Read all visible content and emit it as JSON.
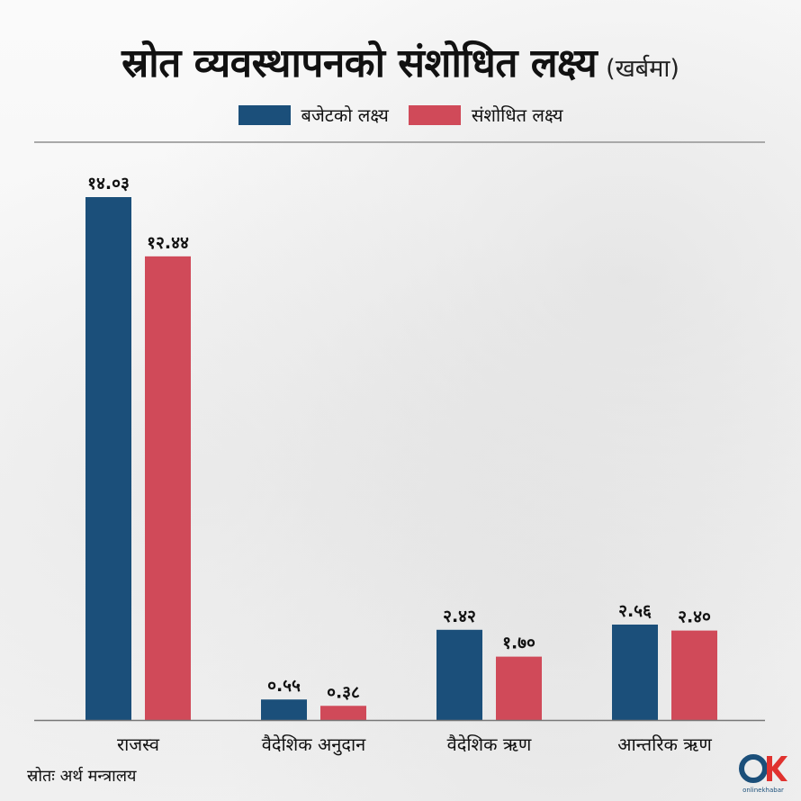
{
  "title": "स्रोत व्यवस्थापनको संशोधित लक्ष्य",
  "title_unit": "(खर्बमा)",
  "source": "स्रोतः अर्थ मन्त्रालय",
  "logo_text": "onlinekhabar",
  "colors": {
    "series1": "#1b4f7a",
    "series2": "#d04a59",
    "axis": "#777777"
  },
  "chart_data": {
    "type": "bar",
    "title": "स्रोत व्यवस्थापनको संशोधित लक्ष्य",
    "unit": "(खर्बमा)",
    "categories": [
      "राजस्व",
      "वैदेशिक अनुदान",
      "वैदेशिक ऋण",
      "आन्तरिक ऋण"
    ],
    "series": [
      {
        "name": "बजेटको लक्ष्य",
        "values": [
          14.03,
          0.55,
          2.42,
          2.56
        ],
        "labels": [
          "१४.०३",
          "०.५५",
          "२.४२",
          "२.५६"
        ]
      },
      {
        "name": "संशोधित लक्ष्य",
        "values": [
          12.44,
          0.38,
          1.7,
          2.4
        ],
        "labels": [
          "१२.४४",
          "०.३८",
          "१.७०",
          "२.४०"
        ]
      }
    ],
    "ylim": [
      0,
      14.03
    ],
    "grid": false,
    "legend": "top-center"
  }
}
